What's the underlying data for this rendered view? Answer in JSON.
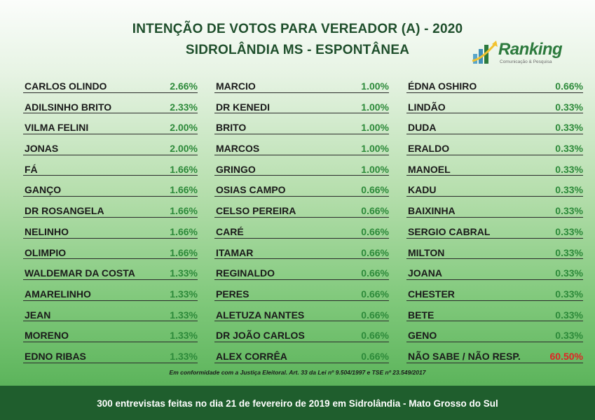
{
  "header": {
    "title_line1": "INTENÇÃO DE VOTOS PARA VEREADOR (A) - 2020",
    "title_line2": "SIDROLÂNDIA MS - ESPONTÂNEA"
  },
  "logo": {
    "word": "Ranking",
    "subtitle": "Comunicação & Pesquisa",
    "icon": "bar-chart-logo-icon",
    "color": "#2c7a3d"
  },
  "colors": {
    "percent": "#2d8a3a",
    "highlight_percent": "#e02424",
    "footer_bar": "#1f5e2d",
    "title": "#1f4f2c"
  },
  "chart_data": {
    "type": "table",
    "columns": [
      [
        {
          "name": "CARLOS OLINDO",
          "value": "2.66%"
        },
        {
          "name": "ADILSINHO BRITO",
          "value": "2.33%"
        },
        {
          "name": "VILMA FELINI",
          "value": "2.00%"
        },
        {
          "name": "JONAS",
          "value": "2.00%"
        },
        {
          "name": "FÁ",
          "value": "1.66%"
        },
        {
          "name": "GANÇO",
          "value": "1.66%"
        },
        {
          "name": "DR ROSANGELA",
          "value": "1.66%"
        },
        {
          "name": "NELINHO",
          "value": "1.66%"
        },
        {
          "name": "OLIMPIO",
          "value": "1.66%"
        },
        {
          "name": "WALDEMAR DA COSTA",
          "value": "1.33%"
        },
        {
          "name": "AMARELINHO",
          "value": "1.33%"
        },
        {
          "name": "JEAN",
          "value": "1.33%"
        },
        {
          "name": "MORENO",
          "value": "1.33%"
        },
        {
          "name": "EDNO RIBAS",
          "value": "1.33%"
        }
      ],
      [
        {
          "name": "MARCIO",
          "value": "1.00%"
        },
        {
          "name": "DR KENEDI",
          "value": "1.00%"
        },
        {
          "name": "BRITO",
          "value": "1.00%"
        },
        {
          "name": "MARCOS",
          "value": "1.00%"
        },
        {
          "name": "GRINGO",
          "value": "1.00%"
        },
        {
          "name": "OSIAS CAMPO",
          "value": "0.66%"
        },
        {
          "name": "CELSO PEREIRA",
          "value": "0.66%"
        },
        {
          "name": "CARÉ",
          "value": "0.66%"
        },
        {
          "name": "ITAMAR",
          "value": "0.66%"
        },
        {
          "name": "REGINALDO",
          "value": "0.66%"
        },
        {
          "name": "PERES",
          "value": "0.66%"
        },
        {
          "name": "ALETUZA NANTES",
          "value": "0.66%"
        },
        {
          "name": "DR JOÃO CARLOS",
          "value": "0.66%"
        },
        {
          "name": "ALEX CORRÊA",
          "value": "0.66%"
        }
      ],
      [
        {
          "name": "ÉDNA OSHIRO",
          "value": "0.66%"
        },
        {
          "name": "LINDÃO",
          "value": "0.33%"
        },
        {
          "name": "DUDA",
          "value": "0.33%"
        },
        {
          "name": "ERALDO",
          "value": "0.33%"
        },
        {
          "name": "MANOEL",
          "value": "0.33%"
        },
        {
          "name": "KADU",
          "value": "0.33%"
        },
        {
          "name": "BAIXINHA",
          "value": "0.33%"
        },
        {
          "name": "SERGIO CABRAL",
          "value": "0.33%"
        },
        {
          "name": "MILTON",
          "value": "0.33%"
        },
        {
          "name": "JOANA",
          "value": "0.33%"
        },
        {
          "name": "CHESTER",
          "value": "0.33%"
        },
        {
          "name": "BETE",
          "value": "0.33%"
        },
        {
          "name": "GENO",
          "value": "0.33%"
        },
        {
          "name": "NÃO SABE / NÃO RESP.",
          "value": "60.50%",
          "highlight": true
        }
      ]
    ]
  },
  "footnote": "Em conformidade com a Justiça Eleitoral. Art. 33 da Lei nº 9.504/1997 e TSE nº 23.549/2017",
  "footer": "300 entrevistas feitas no dia 21 de fevereiro de 2019 em Sidrolândia - Mato Grosso do Sul"
}
